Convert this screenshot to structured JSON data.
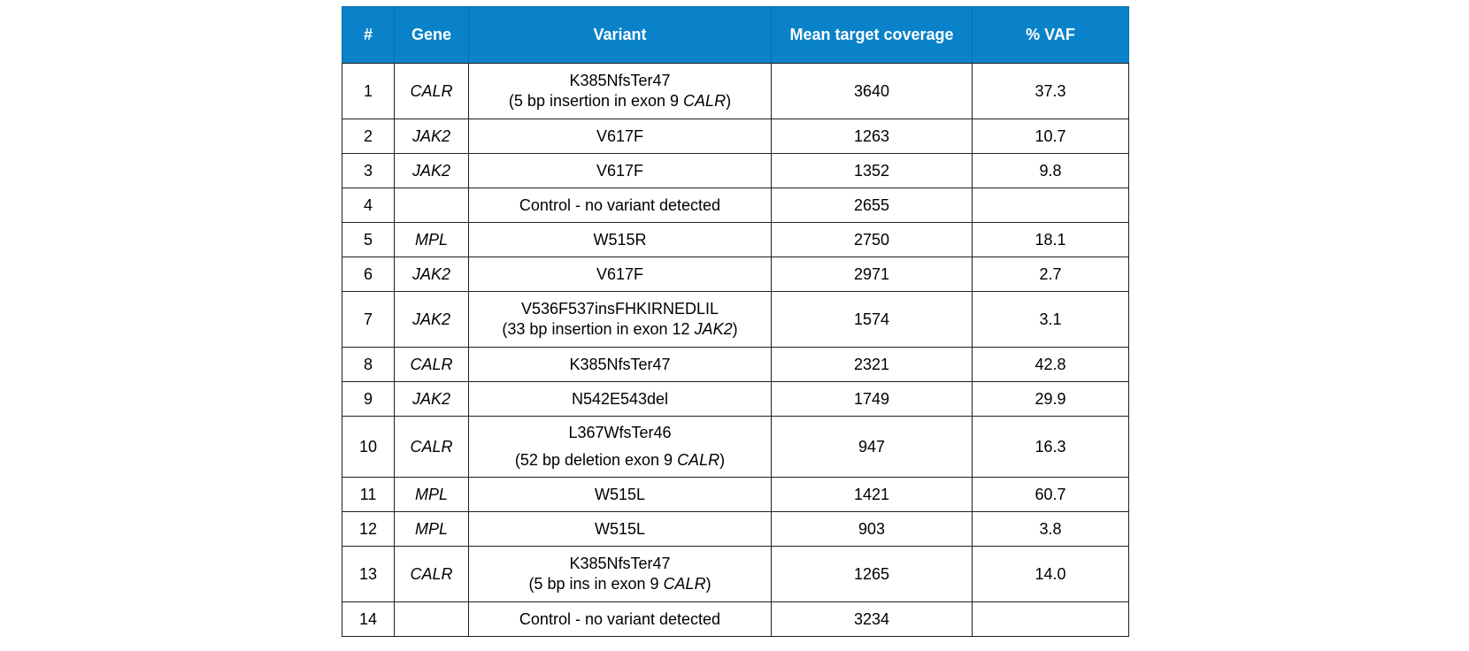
{
  "table": {
    "headers": [
      "#",
      "Gene",
      "Variant",
      "Mean target coverage",
      "% VAF"
    ],
    "rows": [
      {
        "num": "1",
        "gene": "CALR",
        "variant_line1": "K385NfsTer47",
        "variant_line2_pre": "(5 bp insertion  in exon 9 ",
        "variant_line2_gene": "CALR",
        "variant_line2_post": ")",
        "coverage": "3640",
        "vaf": "37.3"
      },
      {
        "num": "2",
        "gene": "JAK2",
        "variant_line1": "V617F",
        "coverage": "1263",
        "vaf": "10.7"
      },
      {
        "num": "3",
        "gene": "JAK2",
        "variant_line1": "V617F",
        "coverage": "1352",
        "vaf": "9.8"
      },
      {
        "num": "4",
        "gene": "",
        "variant_line1": "Control - no variant detected",
        "coverage": "2655",
        "vaf": ""
      },
      {
        "num": "5",
        "gene": "MPL",
        "variant_line1": "W515R",
        "coverage": "2750",
        "vaf": "18.1"
      },
      {
        "num": "6",
        "gene": "JAK2",
        "variant_line1": "V617F",
        "coverage": "2971",
        "vaf": "2.7"
      },
      {
        "num": "7",
        "gene": "JAK2",
        "variant_line1": "V536F537insFHKIRNEDLIL",
        "variant_line2_pre": "(33 bp insertion in exon 12 ",
        "variant_line2_gene": "JAK2",
        "variant_line2_post": ")",
        "coverage": "1574",
        "vaf": "3.1"
      },
      {
        "num": "8",
        "gene": "CALR",
        "variant_line1": "K385NfsTer47",
        "coverage": "2321",
        "vaf": "42.8"
      },
      {
        "num": "9",
        "gene": "JAK2",
        "variant_line1": "N542E543del",
        "coverage": "1749",
        "vaf": "29.9"
      },
      {
        "num": "10",
        "gene": "CALR",
        "variant_line1": "L367WfsTer46",
        "variant_line2_pre": "(52 bp deletion exon 9 ",
        "variant_line2_gene": "CALR",
        "variant_line2_post": ")",
        "coverage": "947",
        "vaf": "16.3"
      },
      {
        "num": "11",
        "gene": "MPL",
        "variant_line1": "W515L",
        "coverage": "1421",
        "vaf": "60.7"
      },
      {
        "num": "12",
        "gene": "MPL",
        "variant_line1": "W515L",
        "coverage": "903",
        "vaf": "3.8"
      },
      {
        "num": "13",
        "gene": "CALR",
        "variant_line1": "K385NfsTer47",
        "variant_line2_pre": "(5 bp ins in exon 9 ",
        "variant_line2_gene": "CALR",
        "variant_line2_post": ")",
        "coverage": "1265",
        "vaf": "14.0"
      },
      {
        "num": "14",
        "gene": "",
        "variant_line1": "Control - no variant detected",
        "coverage": "3234",
        "vaf": ""
      }
    ]
  },
  "colors": {
    "header_bg": "#0a82c9",
    "header_text": "#ffffff",
    "border": "#1f1f1f"
  }
}
